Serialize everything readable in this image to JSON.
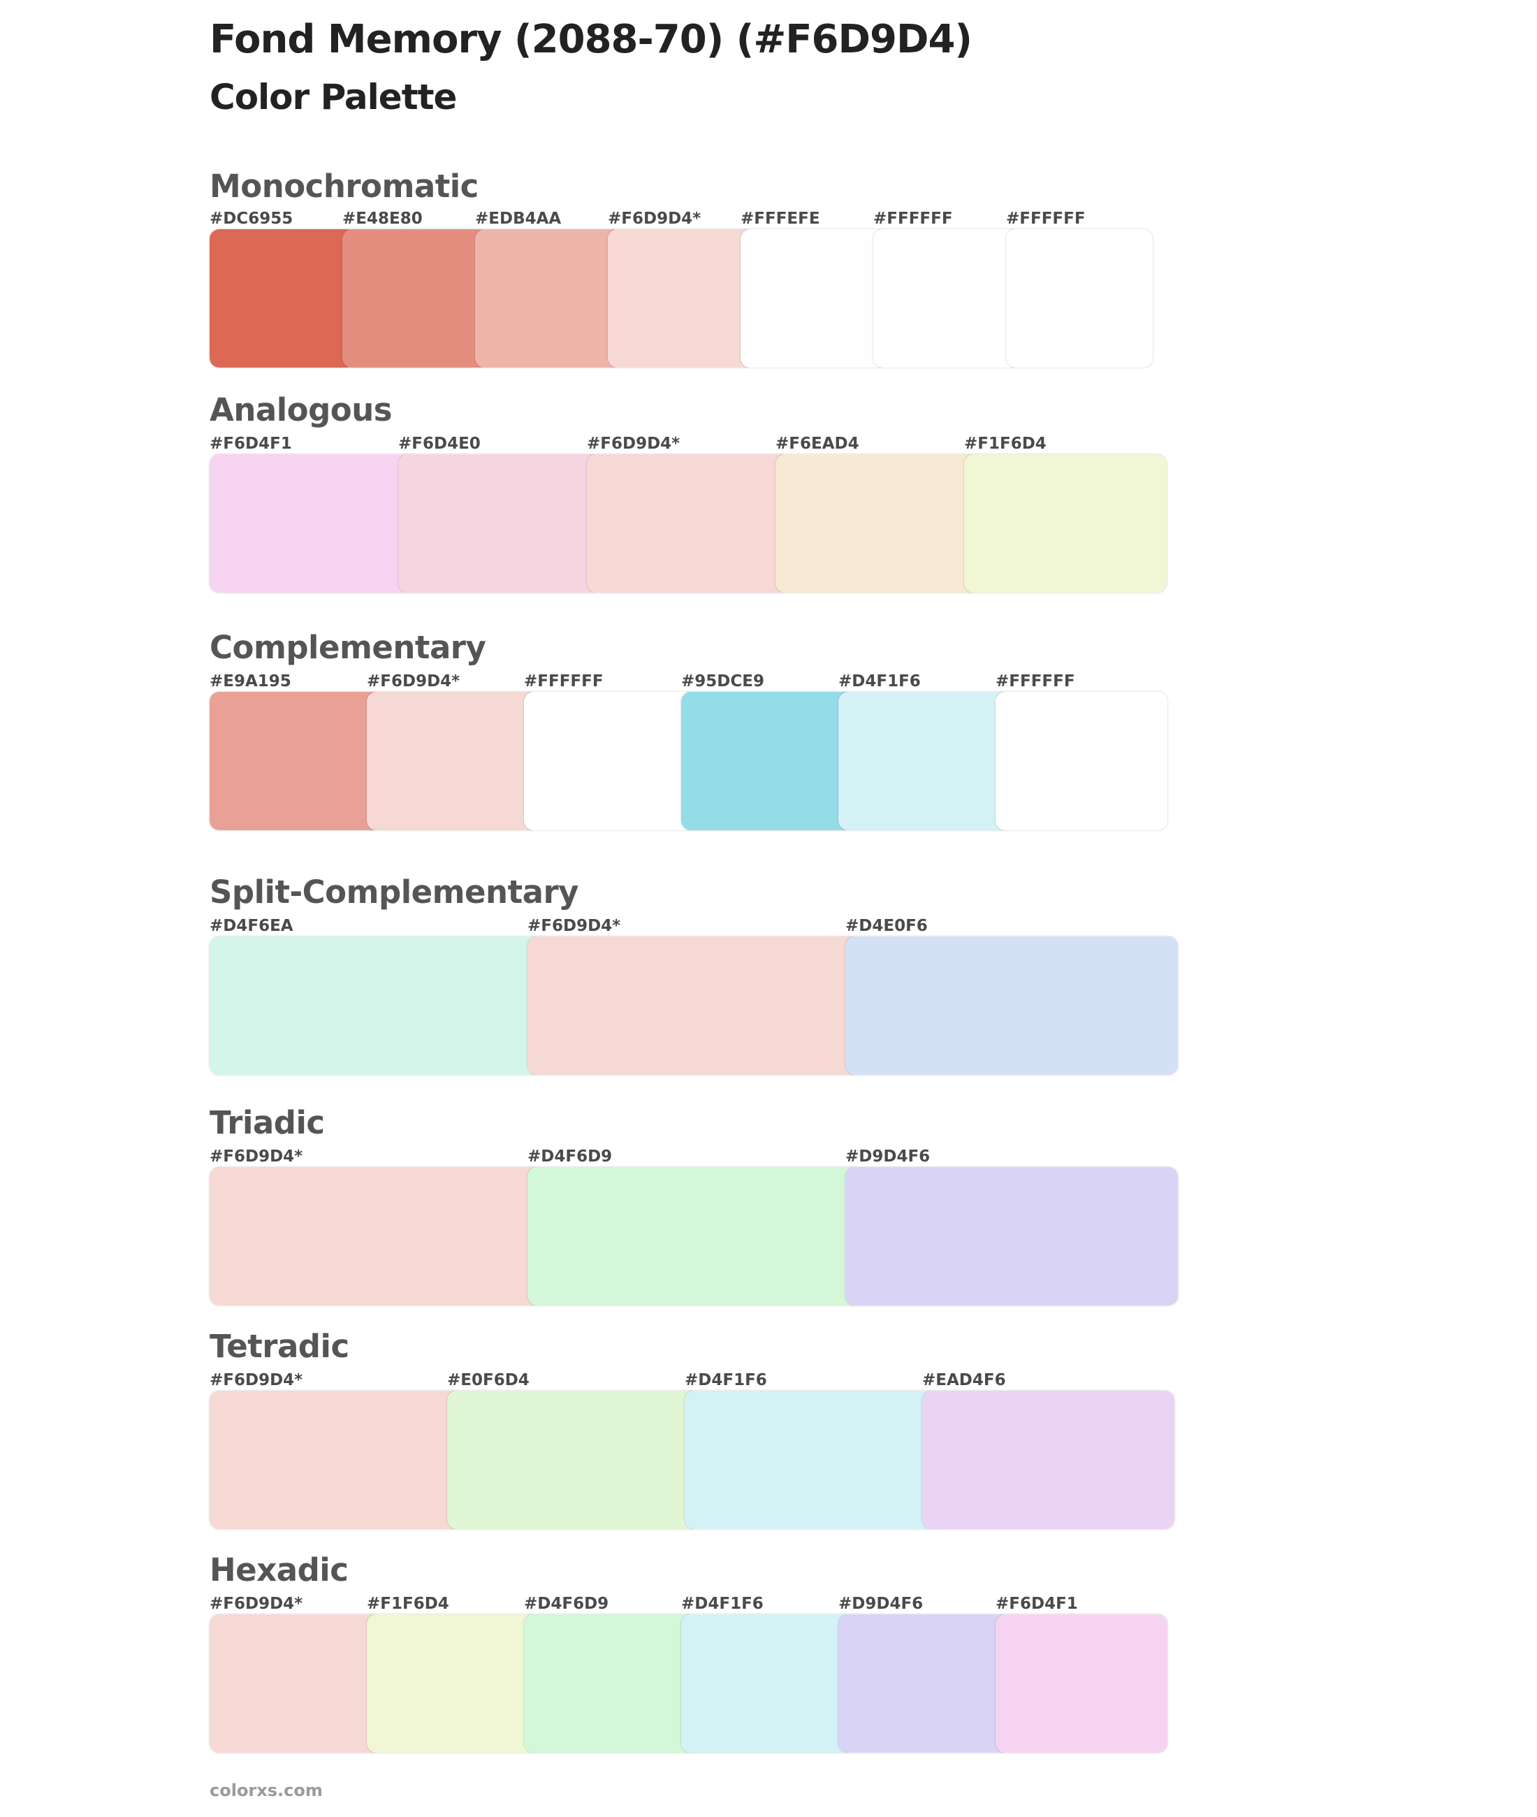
{
  "page": {
    "title": "Fond Memory (2088-70) (#F6D9D4)",
    "subtitle": "Color Palette",
    "footer": "colorxs.com"
  },
  "sections": [
    {
      "id": "monochromatic",
      "title": "Monochromatic",
      "swatches": [
        {
          "label": "#DC6955",
          "color": "#DC6955"
        },
        {
          "label": "#E48E80",
          "color": "#E48E80"
        },
        {
          "label": "#EDB4AA",
          "color": "#EDB4AA"
        },
        {
          "label": "#F6D9D4*",
          "color": "#F6D9D4"
        },
        {
          "label": "#FFFEFE",
          "color": "#FFFEFE"
        },
        {
          "label": "#FFFFFF",
          "color": "#FFFFFF"
        },
        {
          "label": "#FFFFFF",
          "color": "#FFFFFF"
        }
      ]
    },
    {
      "id": "analogous",
      "title": "Analogous",
      "swatches": [
        {
          "label": "#F6D4F1",
          "color": "#F6D4F1"
        },
        {
          "label": "#F6D4E0",
          "color": "#F6D4E0"
        },
        {
          "label": "#F6D9D4*",
          "color": "#F6D9D4"
        },
        {
          "label": "#F6EAD4",
          "color": "#F6EAD4"
        },
        {
          "label": "#F1F6D4",
          "color": "#F1F6D4"
        }
      ]
    },
    {
      "id": "complementary",
      "title": "Complementary",
      "swatches": [
        {
          "label": "#E9A195",
          "color": "#E9A195"
        },
        {
          "label": "#F6D9D4*",
          "color": "#F6D9D4"
        },
        {
          "label": "#FFFFFF",
          "color": "#FFFFFF"
        },
        {
          "label": "#95DCE9",
          "color": "#95DCE9"
        },
        {
          "label": "#D4F1F6",
          "color": "#D4F1F6"
        },
        {
          "label": "#FFFFFF",
          "color": "#FFFFFF"
        }
      ]
    },
    {
      "id": "split-complementary",
      "title": "Split-Complementary",
      "swatches": [
        {
          "label": "#D4F6EA",
          "color": "#D4F6EA"
        },
        {
          "label": "#F6D9D4*",
          "color": "#F6D9D4"
        },
        {
          "label": "#D4E0F6",
          "color": "#D4E0F6"
        }
      ]
    },
    {
      "id": "triadic",
      "title": "Triadic",
      "swatches": [
        {
          "label": "#F6D9D4*",
          "color": "#F6D9D4"
        },
        {
          "label": "#D4F6D9",
          "color": "#D4F6D9"
        },
        {
          "label": "#D9D4F6",
          "color": "#D9D4F6"
        }
      ]
    },
    {
      "id": "tetradic",
      "title": "Tetradic",
      "swatches": [
        {
          "label": "#F6D9D4*",
          "color": "#F6D9D4"
        },
        {
          "label": "#E0F6D4",
          "color": "#E0F6D4"
        },
        {
          "label": "#D4F1F6",
          "color": "#D4F1F6"
        },
        {
          "label": "#EAD4F6",
          "color": "#EAD4F6"
        }
      ]
    },
    {
      "id": "hexadic",
      "title": "Hexadic",
      "swatches": [
        {
          "label": "#F6D9D4*",
          "color": "#F6D9D4"
        },
        {
          "label": "#F1F6D4",
          "color": "#F1F6D4"
        },
        {
          "label": "#D4F6D9",
          "color": "#D4F6D9"
        },
        {
          "label": "#D4F1F6",
          "color": "#D4F1F6"
        },
        {
          "label": "#D9D4F6",
          "color": "#D9D4F6"
        },
        {
          "label": "#F6D4F1",
          "color": "#F6D4F1"
        }
      ]
    }
  ]
}
